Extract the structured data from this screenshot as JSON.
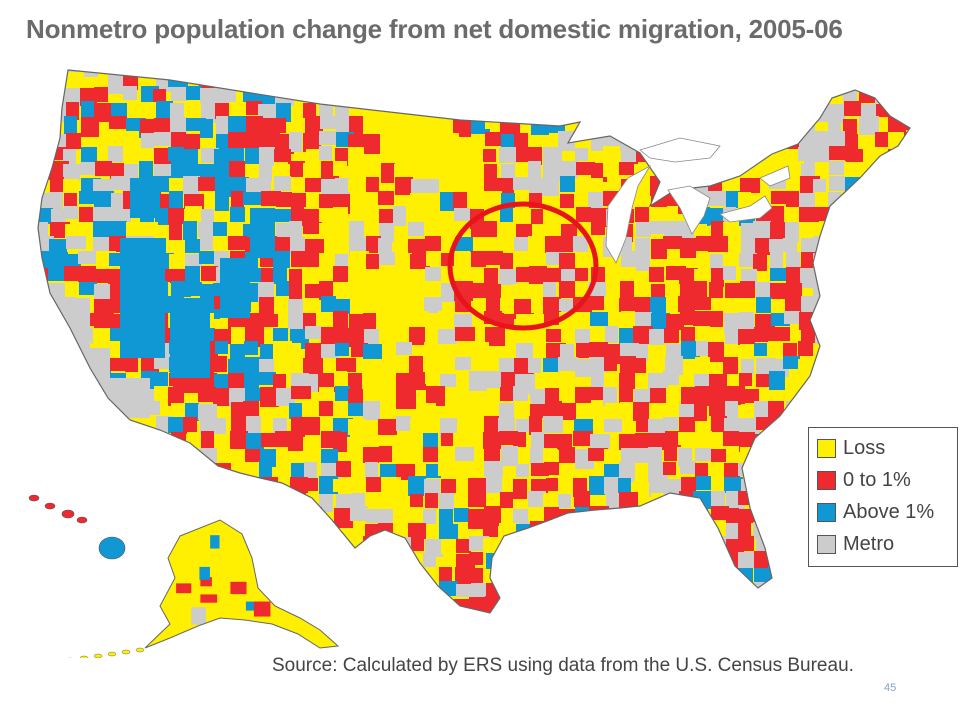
{
  "title": "Nonmetro population change from net domestic migration, 2005-06",
  "source": "Source:  Calculated by ERS using data from the U.S. Census Bureau.",
  "page_number": "45",
  "colors": {
    "loss": "#ffef00",
    "zero_to_one": "#ee2a2f",
    "above_one": "#1098d4",
    "metro": "#cccccc",
    "highlight_ring": "#e8141c"
  },
  "legend": [
    {
      "label": "Loss",
      "color_key": "loss"
    },
    {
      "label": "0 to 1%",
      "color_key": "zero_to_one"
    },
    {
      "label": "Above 1%",
      "color_key": "above_one"
    },
    {
      "label": "Metro",
      "color_key": "metro"
    }
  ],
  "annotation": {
    "shape": "ellipse",
    "region": "Iowa / southern Minnesota"
  }
}
